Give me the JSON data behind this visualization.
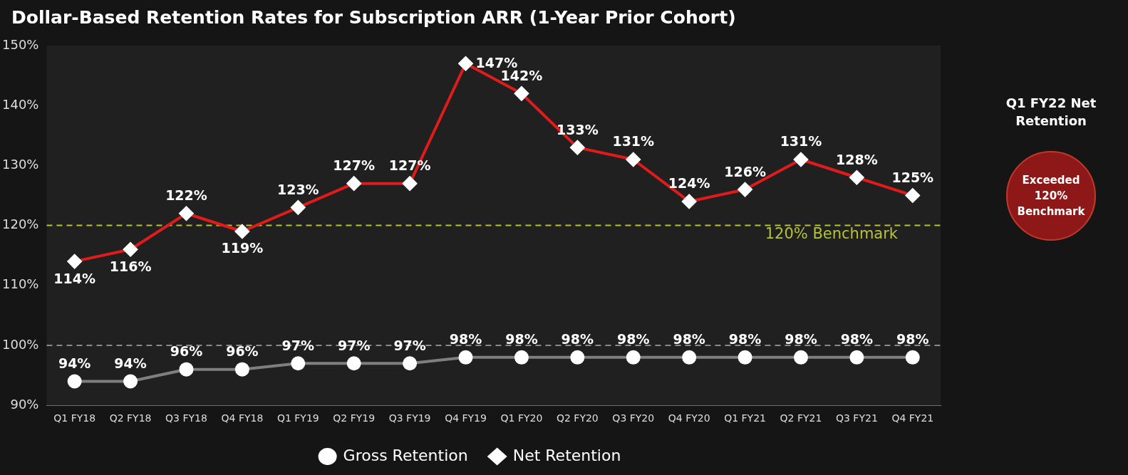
{
  "chart_data": {
    "type": "line",
    "title": "Dollar-Based Retention Rates for Subscription ARR (1-Year Prior Cohort)",
    "categories": [
      "Q1 FY18",
      "Q2 FY18",
      "Q3 FY18",
      "Q4 FY18",
      "Q1 FY19",
      "Q2 FY19",
      "Q3 FY19",
      "Q4 FY19",
      "Q1 FY20",
      "Q2 FY20",
      "Q3 FY20",
      "Q4 FY20",
      "Q1 FY21",
      "Q2 FY21",
      "Q3 FY21",
      "Q4 FY21"
    ],
    "series": [
      {
        "name": "Gross Retention",
        "color": "#7f7f7f",
        "marker": "circle",
        "values": [
          94,
          94,
          96,
          96,
          97,
          97,
          97,
          98,
          98,
          98,
          98,
          98,
          98,
          98,
          98,
          98
        ],
        "value_labels": [
          "94%",
          "94%",
          "96%",
          "96%",
          "97%",
          "97%",
          "97%",
          "98%",
          "98%",
          "98%",
          "98%",
          "98%",
          "98%",
          "98%",
          "98%",
          "98%"
        ]
      },
      {
        "name": "Net Retention",
        "color": "#e01b1b",
        "marker": "diamond",
        "values": [
          114,
          116,
          122,
          119,
          123,
          127,
          127,
          147,
          142,
          133,
          131,
          124,
          126,
          131,
          128,
          125
        ],
        "value_labels": [
          "114%",
          "116%",
          "122%",
          "119%",
          "123%",
          "127%",
          "127%",
          "147%",
          "142%",
          "133%",
          "131%",
          "124%",
          "126%",
          "131%",
          "128%",
          "125%"
        ]
      }
    ],
    "ylim": [
      90,
      150
    ],
    "yticks": [
      {
        "value": 90,
        "label": "90%"
      },
      {
        "value": 100,
        "label": "100%"
      },
      {
        "value": 110,
        "label": "110%"
      },
      {
        "value": 120,
        "label": "120%"
      },
      {
        "value": 130,
        "label": "130%"
      },
      {
        "value": 140,
        "label": "140%"
      },
      {
        "value": 150,
        "label": "150%"
      }
    ],
    "ref_lines": [
      {
        "axis": "y",
        "value": 120,
        "label": "120% Benchmark",
        "color": "#b5c334",
        "line_style": "dashed"
      },
      {
        "axis": "y",
        "value": 100,
        "label": null,
        "color": "#8a8a8a",
        "line_style": "dashed"
      }
    ],
    "grid": false,
    "legend": "bottom",
    "line_style": "solid",
    "annotations": [
      "Q1 FY22 Net Retention",
      "Exceeded 120% Benchmark"
    ]
  }
}
